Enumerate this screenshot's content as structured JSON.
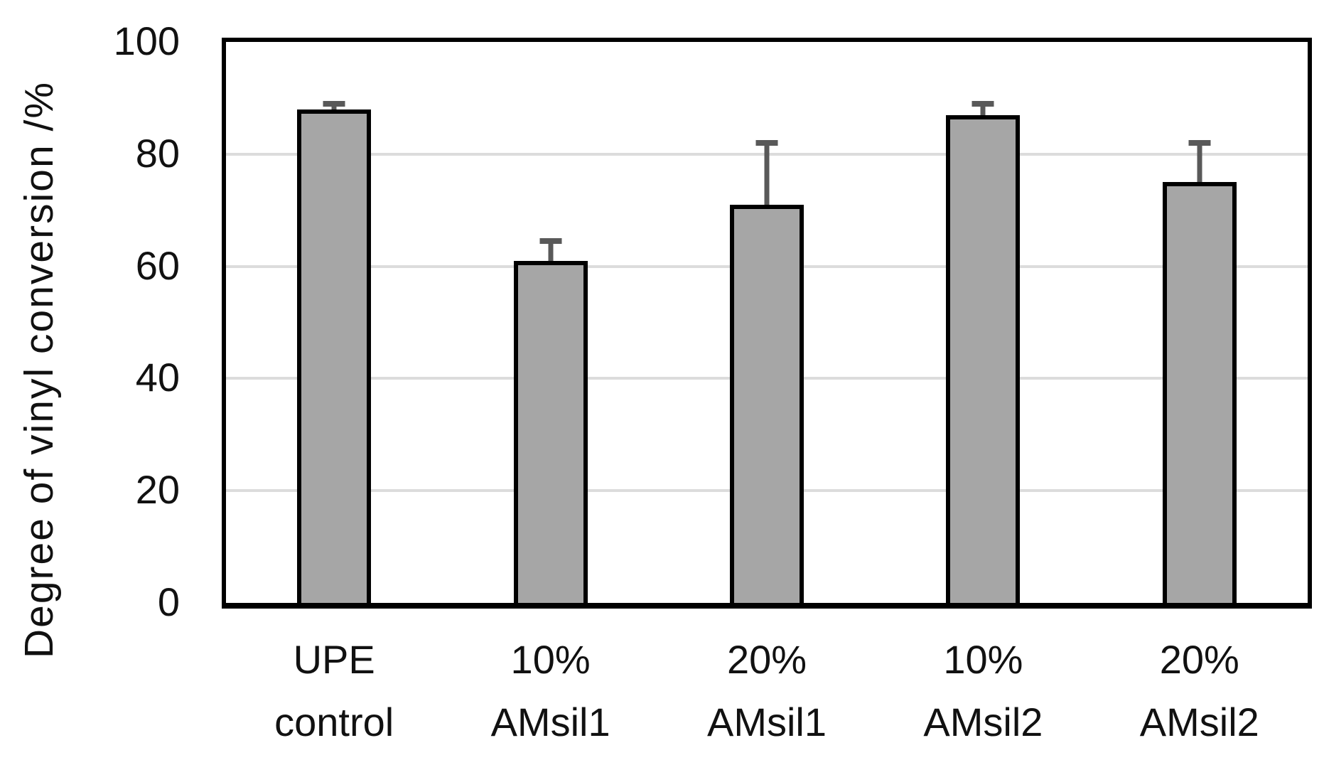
{
  "chart_data": {
    "type": "bar",
    "title": "",
    "xlabel": "",
    "ylabel": "Degree of vinyl conversion /%",
    "ylim": [
      0,
      100
    ],
    "yticks": [
      0,
      20,
      40,
      60,
      80,
      100
    ],
    "grid": true,
    "legend": false,
    "categories": [
      [
        "UPE",
        "control"
      ],
      [
        "10%",
        "AMsil1"
      ],
      [
        "20%",
        "AMsil1"
      ],
      [
        "10%",
        "AMsil2"
      ],
      [
        "20%",
        "AMsil2"
      ]
    ],
    "values": [
      88,
      61,
      71,
      87,
      75
    ],
    "error_up": [
      1,
      3.5,
      11,
      2,
      7
    ],
    "colors": {
      "bar_fill": "#a6a6a6",
      "bar_border": "#000000",
      "error_bar": "#595959",
      "gridline": "#dcdcdc",
      "axis": "#000000",
      "text": "#111111",
      "background": "#ffffff"
    }
  }
}
